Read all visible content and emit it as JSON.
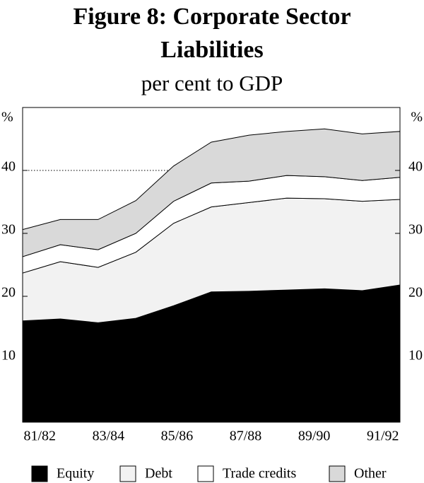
{
  "chart_data": {
    "type": "stacked_area",
    "title": "Figure 8: Corporate Sector Liabilities",
    "subtitle": "per cent to GDP",
    "y_label": "%",
    "categories": [
      "81/82",
      null,
      "83/84",
      null,
      "85/86",
      null,
      "87/88",
      null,
      "89/90",
      null,
      "91/92"
    ],
    "series": [
      {
        "name": "Equity",
        "color": "#000000",
        "values": [
          16.1,
          16.4,
          15.8,
          16.5,
          18.5,
          20.7,
          20.8,
          21.0,
          21.2,
          20.9,
          21.8
        ]
      },
      {
        "name": "Debt",
        "color": "#f2f2f2",
        "values": [
          7.6,
          9.1,
          8.8,
          10.5,
          13.1,
          13.5,
          14.1,
          14.6,
          14.3,
          14.2,
          13.6
        ]
      },
      {
        "name": "Trade credits",
        "color": "#ffffff",
        "values": [
          2.6,
          2.7,
          2.8,
          3.0,
          3.5,
          3.8,
          3.4,
          3.6,
          3.5,
          3.3,
          3.5
        ]
      },
      {
        "name": "Other",
        "color": "#d9d9d9",
        "values": [
          4.3,
          4.0,
          4.8,
          5.2,
          5.6,
          6.5,
          7.3,
          7.0,
          7.6,
          7.4,
          7.3
        ]
      }
    ],
    "ylim": [
      0,
      50
    ],
    "yticks": [
      10,
      20,
      30,
      40
    ],
    "grid": true,
    "legend": "bottom"
  }
}
